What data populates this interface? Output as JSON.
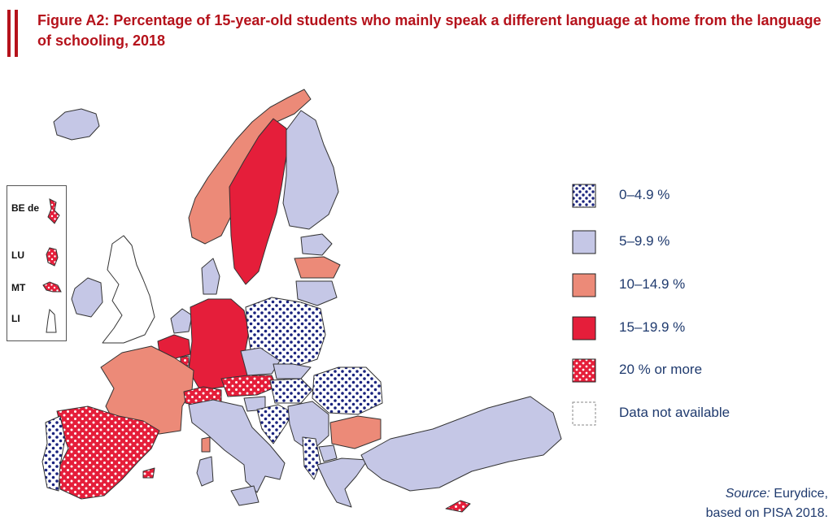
{
  "title": "Figure A2: Percentage of 15-year-old students who mainly speak a different language at home from the language of schooling, 2018",
  "colors": {
    "title": "#b5121b",
    "band_0_5": "#1a237e",
    "band_5_10": "#c5c7e6",
    "band_10_15": "#ec8a78",
    "band_15_20": "#e51e3a",
    "band_20_plus": "#e51e3a",
    "not_available": "#ffffff",
    "text": "#1f3a6e"
  },
  "inset": {
    "labels": [
      "BE de",
      "LU",
      "MT",
      "LI"
    ]
  },
  "legend": {
    "items": [
      {
        "label": "0–4.9 %",
        "fill": "dots"
      },
      {
        "label": "5–9.9 %",
        "fill": "lavender"
      },
      {
        "label": "10–14.9 %",
        "fill": "salmon"
      },
      {
        "label": "15–19.9 %",
        "fill": "red"
      },
      {
        "label": "20 % or more",
        "fill": "red-dots"
      },
      {
        "label": "Data not available",
        "fill": "white"
      }
    ]
  },
  "source": {
    "prefix": "Source:",
    "text": " Eurydice,",
    "line2": "based on PISA 2018."
  }
}
